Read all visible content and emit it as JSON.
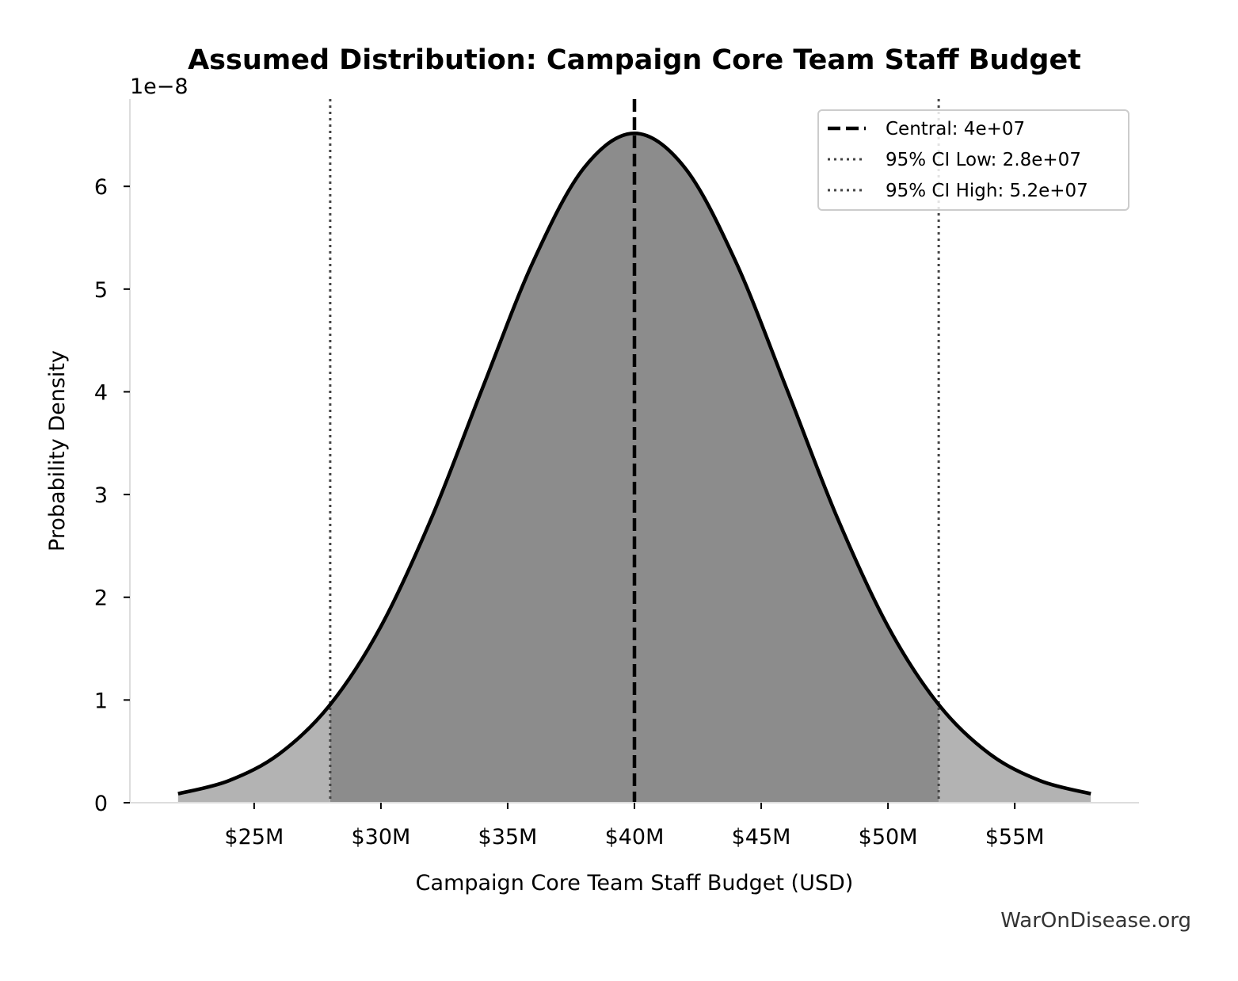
{
  "chart_data": {
    "type": "area",
    "title": "Assumed Distribution: Campaign Core Team Staff Budget",
    "xlabel": "Campaign Core Team Staff Budget (USD)",
    "ylabel": "Probability Density",
    "y_offset_label": "1e−8",
    "xlim": [
      20.1,
      59.9
    ],
    "ylim": [
      0,
      6.85
    ],
    "x_unit": "$M",
    "y_unit": "1e-8",
    "grid": false,
    "legend_position": "top-right",
    "x_ticks": [
      {
        "value": 25,
        "label": "$25M"
      },
      {
        "value": 30,
        "label": "$30M"
      },
      {
        "value": 35,
        "label": "$35M"
      },
      {
        "value": 40,
        "label": "$40M"
      },
      {
        "value": 45,
        "label": "$45M"
      },
      {
        "value": 50,
        "label": "$50M"
      },
      {
        "value": 55,
        "label": "$55M"
      }
    ],
    "y_ticks": [
      {
        "value": 0,
        "label": "0"
      },
      {
        "value": 1,
        "label": "1"
      },
      {
        "value": 2,
        "label": "2"
      },
      {
        "value": 3,
        "label": "3"
      },
      {
        "value": 4,
        "label": "4"
      },
      {
        "value": 5,
        "label": "5"
      },
      {
        "value": 6,
        "label": "6"
      }
    ],
    "distribution": {
      "kind": "normal",
      "mean": 40,
      "ci_low": 28,
      "ci_high": 52
    },
    "series": [
      {
        "x": [
          22,
          24,
          26,
          28,
          30,
          32,
          34,
          36,
          38,
          40,
          42,
          44,
          46,
          48,
          50,
          52,
          54,
          56,
          58
        ],
        "y": [
          0.087,
          0.214,
          0.477,
          0.955,
          1.716,
          2.774,
          4.032,
          5.264,
          6.177,
          6.516,
          6.177,
          5.264,
          4.032,
          2.774,
          1.716,
          0.955,
          0.477,
          0.214,
          0.087
        ]
      }
    ],
    "vlines": [
      {
        "x": 40,
        "style": "dashed",
        "color": "#000000",
        "label": "Central: 4e+07"
      },
      {
        "x": 28,
        "style": "dotted",
        "color": "#444444",
        "label": "95% CI Low: 2.8e+07"
      },
      {
        "x": 52,
        "style": "dotted",
        "color": "#444444",
        "label": "95% CI High: 5.2e+07"
      }
    ],
    "colors": {
      "ci_fill": "#8c8c8c",
      "tail_fill": "#b3b3b3",
      "curve": "#000000",
      "spine": "#dddddd"
    }
  },
  "watermark": "WarOnDisease.org"
}
